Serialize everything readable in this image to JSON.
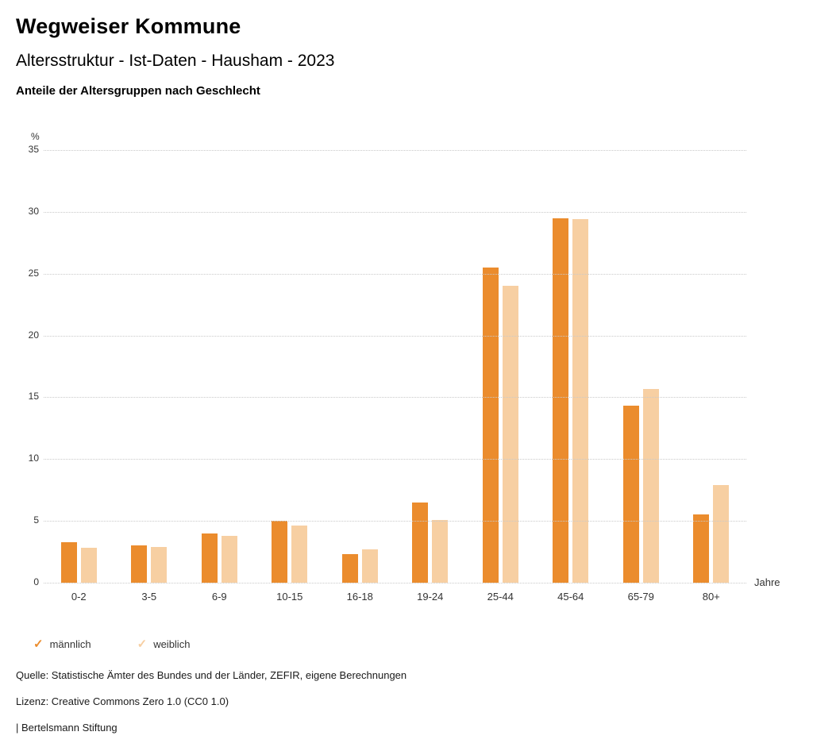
{
  "header": {
    "title": "Wegweiser Kommune",
    "subtitle": "Altersstruktur - Ist-Daten - Hausham - 2023",
    "caption": "Anteile der Altersgruppen nach Geschlecht"
  },
  "chart_data": {
    "type": "bar",
    "title": "Anteile der Altersgruppen nach Geschlecht",
    "categories": [
      "0-2",
      "3-5",
      "6-9",
      "10-15",
      "16-18",
      "19-24",
      "25-44",
      "45-64",
      "65-79",
      "80+"
    ],
    "series": [
      {
        "name": "männlich",
        "color": "#EB8C2D",
        "values": [
          3.3,
          3.0,
          4.0,
          5.0,
          2.3,
          6.5,
          25.5,
          29.5,
          14.3,
          5.5
        ]
      },
      {
        "name": "weiblich",
        "color": "#F7CFA2",
        "values": [
          2.8,
          2.9,
          3.8,
          4.6,
          2.7,
          5.1,
          24.0,
          29.4,
          15.7,
          7.9
        ]
      }
    ],
    "ylabel": "%",
    "xlabel": "Jahre",
    "ylim": [
      0,
      35
    ],
    "yticks": [
      0,
      5,
      10,
      15,
      20,
      25,
      30,
      35
    ],
    "grid": "horizontal-dotted",
    "legend_position": "bottom-left",
    "legend_marker": "✓"
  },
  "footer": {
    "source": "Quelle: Statistische Ämter des Bundes und der Länder, ZEFIR, eigene Berechnungen",
    "license": "Lizenz: Creative Commons Zero 1.0 (CC0 1.0)",
    "attribution": "| Bertelsmann Stiftung"
  }
}
